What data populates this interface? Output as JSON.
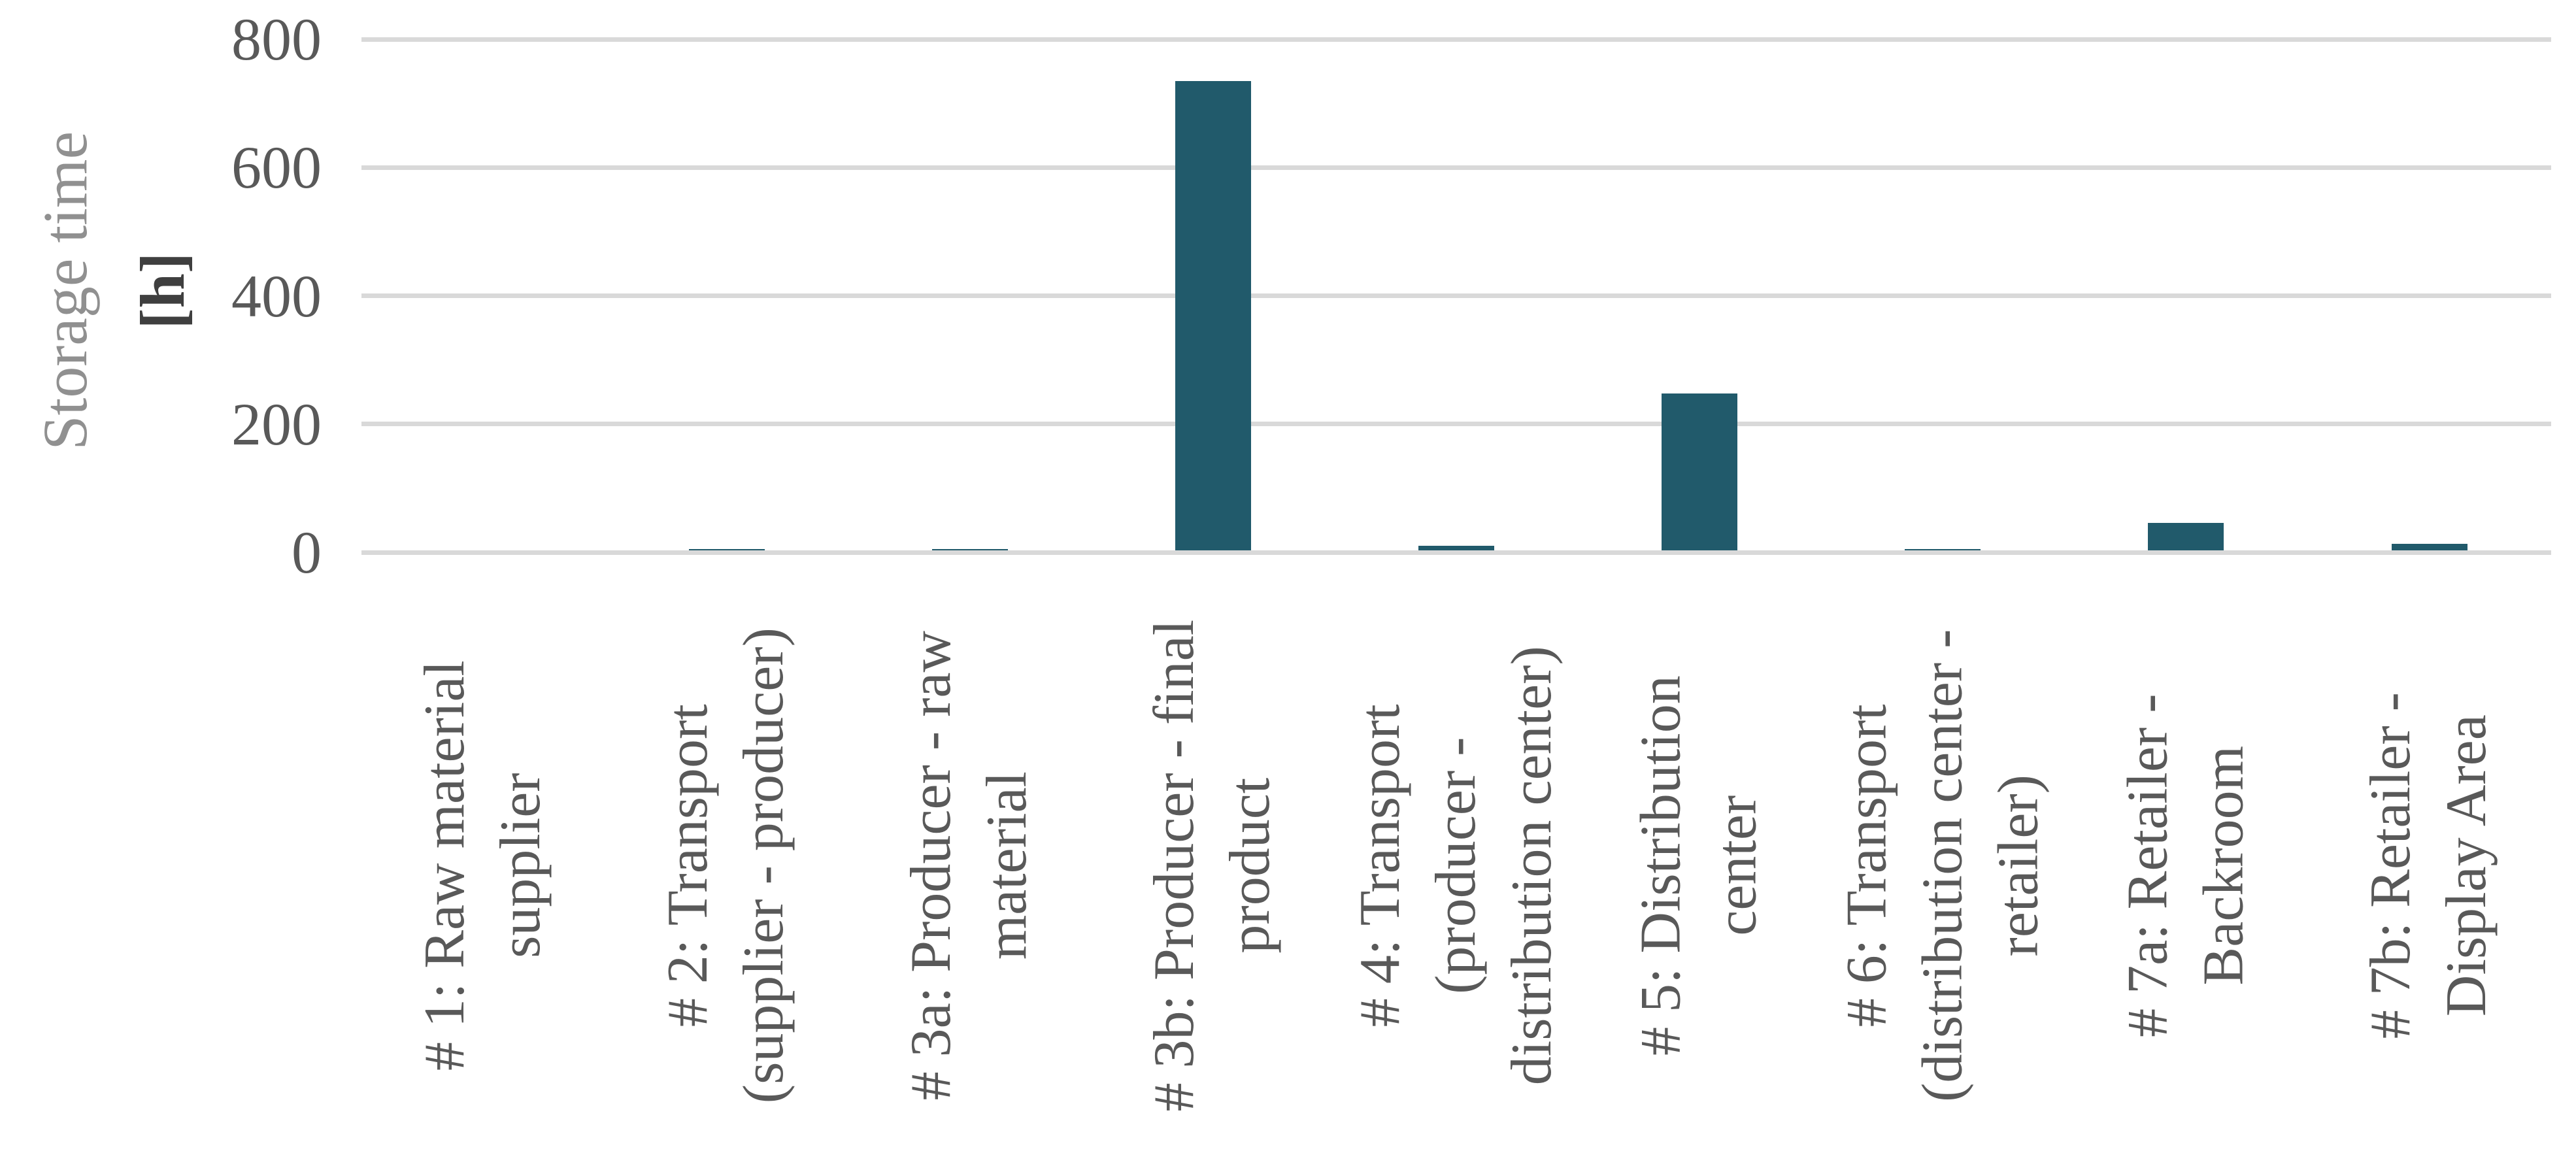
{
  "chart_data": {
    "type": "bar",
    "title": "",
    "xlabel": "",
    "ylabel": "Storage time [h]",
    "y_axis": {
      "title": "Storage time",
      "unit": "[h]",
      "ticks": [
        0,
        200,
        400,
        600,
        800
      ],
      "range": [
        0,
        800
      ],
      "tick_labels": [
        "0",
        "200",
        "400",
        "600",
        "800"
      ]
    },
    "categories": [
      "# 1: Raw material supplier",
      "# 2: Transport (supplier - producer)",
      "# 3a: Producer - raw material",
      "# 3b: Producer - final product",
      "# 4: Transport (producer - distribution center)",
      "# 5: Distribution center",
      "# 6: Transport (distribution center - retailer)",
      "# 7a: Retailer - Backroom",
      "# 7b: Retailer - Display Area"
    ],
    "category_lines": [
      [
        "# 1: Raw material",
        "supplier"
      ],
      [
        "# 2: Transport",
        "(supplier - producer)"
      ],
      [
        "# 3a: Producer - raw",
        "material"
      ],
      [
        "# 3b: Producer - final",
        "product"
      ],
      [
        "# 4: Transport",
        "(producer -",
        "distribution center)"
      ],
      [
        "# 5: Distribution",
        "center"
      ],
      [
        "# 6: Transport",
        "(distribution center -",
        "retailer)"
      ],
      [
        "# 7a: Retailer -",
        "Backroom"
      ],
      [
        "# 7b: Retailer -",
        "Display Area"
      ]
    ],
    "values": [
      0,
      5,
      5,
      735,
      10,
      248,
      5,
      46,
      13
    ],
    "series": [
      {
        "name": "Storage time [h]",
        "values": [
          0,
          5,
          5,
          735,
          10,
          248,
          5,
          46,
          13
        ]
      }
    ],
    "grid": true,
    "legend_position": "none",
    "colors": {
      "bar": "#215A6B",
      "gridline": "#D9D9D9",
      "tick_label": "#595959",
      "category_label": "#595959",
      "axis_title": "#909090",
      "axis_unit": "#3F3F3F",
      "background": "#FFFFFF"
    }
  }
}
